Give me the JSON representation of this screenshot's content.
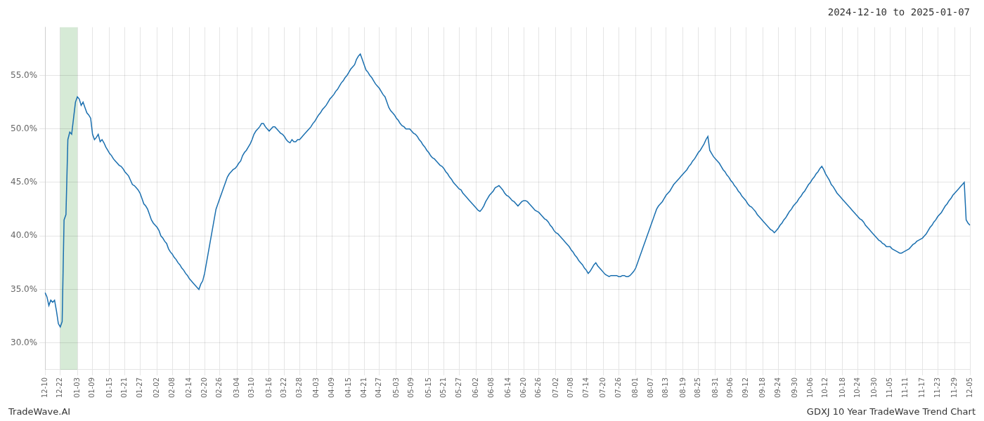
{
  "chart_data": {
    "type": "line",
    "title": "2024-12-10 to 2025-01-07",
    "annotations": [
      "TradeWave.AI",
      "GDXJ 10 Year TradeWave Trend Chart"
    ],
    "color": "#1a6faf",
    "grid": true,
    "spans": [
      {
        "from": "12-22",
        "to": "01-03",
        "color": "#d6ead6"
      }
    ],
    "ylim": [
      0.275,
      0.595
    ],
    "yticks": [
      {
        "value": 0.3,
        "label": "30.0%"
      },
      {
        "value": 0.35,
        "label": "35.0%"
      },
      {
        "value": 0.4,
        "label": "40.0%"
      },
      {
        "value": 0.45,
        "label": "45.0%"
      },
      {
        "value": 0.5,
        "label": "50.0%"
      },
      {
        "value": 0.55,
        "label": "55.0%"
      }
    ],
    "categories": [
      "12-10",
      null,
      null,
      null,
      null,
      null,
      null,
      null,
      "12-22",
      null,
      null,
      null,
      null,
      null,
      null,
      null,
      null,
      "01-03",
      null,
      null,
      null,
      null,
      null,
      null,
      null,
      "01-09",
      null,
      null,
      null,
      null,
      null,
      null,
      null,
      null,
      "01-15",
      null,
      null,
      null,
      null,
      null,
      null,
      null,
      "01-21",
      null,
      null,
      null,
      null,
      null,
      null,
      null,
      "01-27",
      null,
      null,
      null,
      null,
      null,
      null,
      null,
      null,
      "02-02",
      null,
      null,
      null,
      null,
      null,
      null,
      null,
      "02-08",
      null,
      null,
      null,
      null,
      null,
      null,
      null,
      null,
      "02-14",
      null,
      null,
      null,
      null,
      null,
      null,
      null,
      "02-20",
      null,
      null,
      null,
      null,
      null,
      null,
      null,
      "02-26",
      null,
      null,
      null,
      null,
      null,
      null,
      null,
      null,
      "03-04",
      null,
      null,
      null,
      null,
      null,
      null,
      null,
      "03-10",
      null,
      null,
      null,
      null,
      null,
      null,
      null,
      null,
      "03-16",
      null,
      null,
      null,
      null,
      null,
      null,
      null,
      "03-22",
      null,
      null,
      null,
      null,
      null,
      null,
      null,
      "03-28",
      null,
      null,
      null,
      null,
      null,
      null,
      null,
      null,
      "04-03",
      null,
      null,
      null,
      null,
      null,
      null,
      null,
      "04-09",
      null,
      null,
      null,
      null,
      null,
      null,
      null,
      null,
      "04-15",
      null,
      null,
      null,
      null,
      null,
      null,
      null,
      "04-21",
      null,
      null,
      null,
      null,
      null,
      null,
      null,
      "04-27",
      null,
      null,
      null,
      null,
      null,
      null,
      null,
      null,
      "05-03",
      null,
      null,
      null,
      null,
      null,
      null,
      null,
      "05-09",
      null,
      null,
      null,
      null,
      null,
      null,
      null,
      null,
      "05-15",
      null,
      null,
      null,
      null,
      null,
      null,
      null,
      "05-21",
      null,
      null,
      null,
      null,
      null,
      null,
      null,
      "05-27",
      null,
      null,
      null,
      null,
      null,
      null,
      null,
      null,
      "06-02",
      null,
      null,
      null,
      null,
      null,
      null,
      null,
      "06-08",
      null,
      null,
      null,
      null,
      null,
      null,
      null,
      null,
      "06-14",
      null,
      null,
      null,
      null,
      null,
      null,
      null,
      "06-20",
      null,
      null,
      null,
      null,
      null,
      null,
      null,
      "06-26",
      null,
      null,
      null,
      null,
      null,
      null,
      null,
      null,
      "07-02",
      null,
      null,
      null,
      null,
      null,
      null,
      null,
      "07-08",
      null,
      null,
      null,
      null,
      null,
      null,
      null,
      "07-14",
      null,
      null,
      null,
      null,
      null,
      null,
      null,
      null,
      "07-20",
      null,
      null,
      null,
      null,
      null,
      null,
      null,
      "07-26",
      null,
      null,
      null,
      null,
      null,
      null,
      null,
      null,
      "08-01",
      null,
      null,
      null,
      null,
      null,
      null,
      null,
      "08-07",
      null,
      null,
      null,
      null,
      null,
      null,
      null,
      "08-13",
      null,
      null,
      null,
      null,
      null,
      null,
      null,
      null,
      "08-19",
      null,
      null,
      null,
      null,
      null,
      null,
      null,
      "08-25",
      null,
      null,
      null,
      null,
      null,
      null,
      null,
      null,
      "08-31",
      null,
      null,
      null,
      null,
      null,
      null,
      null,
      "09-06",
      null,
      null,
      null,
      null,
      null,
      null,
      null,
      "09-12",
      null,
      null,
      null,
      null,
      null,
      null,
      null,
      null,
      "09-18",
      null,
      null,
      null,
      null,
      null,
      null,
      null,
      "09-24",
      null,
      null,
      null,
      null,
      null,
      null,
      null,
      null,
      "09-30",
      null,
      null,
      null,
      null,
      null,
      null,
      null,
      "10-06",
      null,
      null,
      null,
      null,
      null,
      null,
      null,
      "10-12",
      null,
      null,
      null,
      null,
      null,
      null,
      null,
      null,
      "10-18",
      null,
      null,
      null,
      null,
      null,
      null,
      null,
      "10-24",
      null,
      null,
      null,
      null,
      null,
      null,
      null,
      null,
      "10-30",
      null,
      null,
      null,
      null,
      null,
      null,
      null,
      "11-05",
      null,
      null,
      null,
      null,
      null,
      null,
      null,
      "11-11",
      null,
      null,
      null,
      null,
      null,
      null,
      null,
      null,
      "11-17",
      null,
      null,
      null,
      null,
      null,
      null,
      null,
      "11-23",
      null,
      null,
      null,
      null,
      null,
      null,
      null,
      null,
      "11-29",
      null,
      null,
      null,
      null,
      null,
      null,
      null,
      "12-05"
    ],
    "values": [
      0.347,
      0.343,
      0.335,
      0.34,
      0.338,
      0.34,
      0.33,
      0.318,
      0.315,
      0.32,
      0.415,
      0.42,
      0.49,
      0.497,
      0.495,
      0.51,
      0.525,
      0.53,
      0.528,
      0.522,
      0.525,
      0.52,
      0.515,
      0.513,
      0.51,
      0.495,
      0.49,
      0.492,
      0.495,
      0.488,
      0.49,
      0.487,
      0.483,
      0.48,
      0.477,
      0.475,
      0.472,
      0.47,
      0.468,
      0.466,
      0.465,
      0.463,
      0.46,
      0.458,
      0.456,
      0.452,
      0.448,
      0.447,
      0.445,
      0.443,
      0.44,
      0.435,
      0.43,
      0.428,
      0.425,
      0.42,
      0.415,
      0.412,
      0.41,
      0.408,
      0.405,
      0.4,
      0.398,
      0.395,
      0.393,
      0.388,
      0.385,
      0.383,
      0.38,
      0.378,
      0.375,
      0.373,
      0.37,
      0.368,
      0.365,
      0.363,
      0.36,
      0.358,
      0.356,
      0.354,
      0.352,
      0.35,
      0.355,
      0.358,
      0.365,
      0.375,
      0.385,
      0.395,
      0.405,
      0.415,
      0.425,
      0.43,
      0.435,
      0.44,
      0.445,
      0.45,
      0.455,
      0.458,
      0.46,
      0.462,
      0.463,
      0.465,
      0.468,
      0.47,
      0.475,
      0.478,
      0.48,
      0.483,
      0.486,
      0.49,
      0.495,
      0.498,
      0.5,
      0.502,
      0.505,
      0.505,
      0.502,
      0.5,
      0.498,
      0.5,
      0.502,
      0.502,
      0.5,
      0.498,
      0.496,
      0.495,
      0.493,
      0.49,
      0.488,
      0.487,
      0.49,
      0.488,
      0.488,
      0.49,
      0.49,
      0.492,
      0.494,
      0.496,
      0.498,
      0.5,
      0.502,
      0.505,
      0.507,
      0.51,
      0.513,
      0.515,
      0.518,
      0.52,
      0.522,
      0.525,
      0.528,
      0.53,
      0.532,
      0.535,
      0.537,
      0.54,
      0.543,
      0.545,
      0.548,
      0.55,
      0.553,
      0.556,
      0.558,
      0.56,
      0.565,
      0.568,
      0.57,
      0.565,
      0.56,
      0.555,
      0.553,
      0.55,
      0.548,
      0.545,
      0.542,
      0.54,
      0.538,
      0.535,
      0.532,
      0.53,
      0.525,
      0.52,
      0.517,
      0.515,
      0.513,
      0.51,
      0.508,
      0.505,
      0.503,
      0.502,
      0.5,
      0.5,
      0.5,
      0.498,
      0.496,
      0.495,
      0.493,
      0.49,
      0.488,
      0.485,
      0.483,
      0.48,
      0.478,
      0.475,
      0.473,
      0.472,
      0.47,
      0.468,
      0.466,
      0.465,
      0.463,
      0.46,
      0.458,
      0.455,
      0.453,
      0.45,
      0.448,
      0.446,
      0.444,
      0.443,
      0.44,
      0.438,
      0.436,
      0.434,
      0.432,
      0.43,
      0.428,
      0.426,
      0.424,
      0.423,
      0.425,
      0.428,
      0.432,
      0.435,
      0.438,
      0.44,
      0.442,
      0.445,
      0.446,
      0.447,
      0.445,
      0.443,
      0.44,
      0.438,
      0.437,
      0.435,
      0.433,
      0.432,
      0.43,
      0.428,
      0.43,
      0.432,
      0.433,
      0.433,
      0.432,
      0.43,
      0.428,
      0.426,
      0.424,
      0.423,
      0.422,
      0.42,
      0.418,
      0.416,
      0.415,
      0.413,
      0.41,
      0.408,
      0.405,
      0.403,
      0.402,
      0.4,
      0.398,
      0.396,
      0.394,
      0.392,
      0.39,
      0.387,
      0.385,
      0.382,
      0.38,
      0.377,
      0.375,
      0.373,
      0.37,
      0.368,
      0.365,
      0.367,
      0.37,
      0.373,
      0.375,
      0.372,
      0.37,
      0.368,
      0.366,
      0.364,
      0.363,
      0.362,
      0.363,
      0.363,
      0.363,
      0.363,
      0.362,
      0.362,
      0.363,
      0.363,
      0.362,
      0.362,
      0.363,
      0.365,
      0.367,
      0.37,
      0.375,
      0.38,
      0.385,
      0.39,
      0.395,
      0.4,
      0.405,
      0.41,
      0.415,
      0.42,
      0.425,
      0.428,
      0.43,
      0.432,
      0.435,
      0.438,
      0.44,
      0.442,
      0.445,
      0.448,
      0.45,
      0.452,
      0.454,
      0.456,
      0.458,
      0.46,
      0.462,
      0.465,
      0.467,
      0.47,
      0.472,
      0.475,
      0.478,
      0.48,
      0.483,
      0.486,
      0.49,
      0.493,
      0.48,
      0.477,
      0.474,
      0.472,
      0.47,
      0.468,
      0.465,
      0.462,
      0.46,
      0.457,
      0.455,
      0.452,
      0.45,
      0.447,
      0.445,
      0.442,
      0.44,
      0.437,
      0.435,
      0.433,
      0.43,
      0.428,
      0.427,
      0.425,
      0.423,
      0.42,
      0.418,
      0.416,
      0.414,
      0.412,
      0.41,
      0.408,
      0.406,
      0.405,
      0.403,
      0.405,
      0.407,
      0.41,
      0.412,
      0.415,
      0.417,
      0.42,
      0.423,
      0.425,
      0.428,
      0.43,
      0.432,
      0.435,
      0.437,
      0.44,
      0.442,
      0.445,
      0.448,
      0.45,
      0.453,
      0.455,
      0.458,
      0.46,
      0.463,
      0.465,
      0.462,
      0.458,
      0.455,
      0.452,
      0.448,
      0.446,
      0.443,
      0.44,
      0.438,
      0.436,
      0.434,
      0.432,
      0.43,
      0.428,
      0.426,
      0.424,
      0.422,
      0.42,
      0.418,
      0.416,
      0.415,
      0.413,
      0.41,
      0.408,
      0.406,
      0.404,
      0.402,
      0.4,
      0.398,
      0.396,
      0.395,
      0.393,
      0.392,
      0.39,
      0.39,
      0.39,
      0.388,
      0.387,
      0.386,
      0.385,
      0.384,
      0.384,
      0.385,
      0.386,
      0.387,
      0.388,
      0.39,
      0.392,
      0.393,
      0.395,
      0.396,
      0.397,
      0.398,
      0.4,
      0.402,
      0.405,
      0.408,
      0.41,
      0.413,
      0.415,
      0.418,
      0.42,
      0.422,
      0.425,
      0.428,
      0.43,
      0.433,
      0.435,
      0.438,
      0.44,
      0.442,
      0.444,
      0.446,
      0.448,
      0.45,
      0.415,
      0.412,
      0.41
    ]
  }
}
